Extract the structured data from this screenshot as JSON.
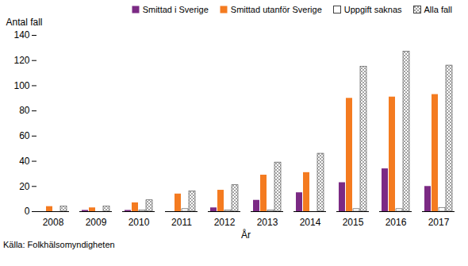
{
  "chart_data": {
    "type": "bar",
    "x_label": "År",
    "y_label": "Antal fall",
    "caption": "Källa: Folkhälsomyndigheten",
    "categories": [
      "2008",
      "2009",
      "2010",
      "2011",
      "2012",
      "2013",
      "2014",
      "2015",
      "2016",
      "2017"
    ],
    "series": [
      {
        "name": "Smittad i Sverige",
        "color": "#7b2a84",
        "values": [
          0,
          1,
          1,
          0,
          3,
          9,
          15,
          23,
          34,
          20
        ]
      },
      {
        "name": "Smittad utanför Sverige",
        "color": "#f47b20",
        "values": [
          4,
          3,
          7,
          14,
          17,
          29,
          31,
          90,
          91,
          93
        ]
      },
      {
        "name": "Uppgift saknas",
        "color": "#ffffff",
        "values": [
          0,
          0,
          1,
          2,
          1,
          1,
          0,
          2,
          2,
          3
        ]
      },
      {
        "name": "Alla fall",
        "color": "#8c8c8c",
        "values": [
          4,
          4,
          9,
          16,
          21,
          39,
          46,
          115,
          127,
          116
        ]
      }
    ],
    "ylim": [
      0,
      140
    ],
    "yticks": [
      0,
      20,
      40,
      60,
      80,
      100,
      120,
      140
    ],
    "legend": "top"
  }
}
